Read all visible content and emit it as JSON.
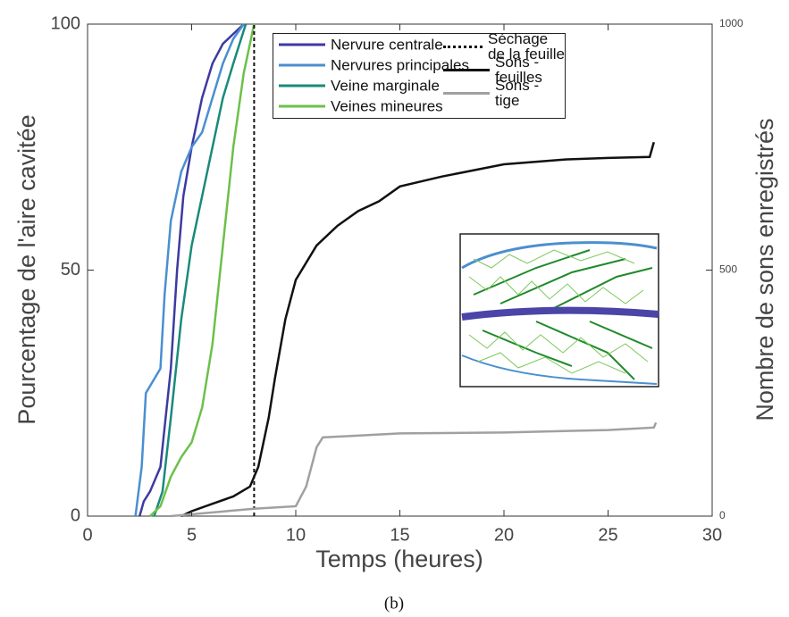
{
  "chart_data": {
    "type": "line",
    "x_label": "Temps (heures)",
    "y_label": "Pourcentage de l'aire cavitée",
    "y2_label": "Nombre de sons enregistrés",
    "caption": "(b)",
    "xlim": [
      0,
      30
    ],
    "xticks": [
      0,
      5,
      10,
      15,
      20,
      25,
      30
    ],
    "ylim": [
      0,
      100
    ],
    "yticks": [
      0,
      50,
      100
    ],
    "y2lim": [
      0,
      1000
    ],
    "y2ticks": [
      0,
      500,
      1000
    ],
    "series": [
      {
        "name": "Nervure centrale",
        "color": "#3d3aa0",
        "x": [
          2.5,
          2.7,
          3.0,
          3.5,
          4.0,
          4.3,
          4.6,
          5.0,
          5.5,
          6.0,
          6.5,
          7.0,
          7.5
        ],
        "values": [
          0,
          3,
          5,
          10,
          30,
          50,
          65,
          75,
          85,
          92,
          96,
          98,
          100
        ]
      },
      {
        "name": "Nervures principales",
        "color": "#4a8fd0",
        "x": [
          2.3,
          2.6,
          2.8,
          3.5,
          3.7,
          4.0,
          4.5,
          5.0,
          5.5,
          6.0,
          6.5,
          7.0,
          7.5
        ],
        "values": [
          0,
          10,
          25,
          30,
          45,
          60,
          70,
          75,
          78,
          85,
          92,
          97,
          100
        ]
      },
      {
        "name": "Veine marginale",
        "color": "#1a8a7a",
        "x": [
          3.2,
          3.6,
          4.0,
          4.5,
          5.0,
          5.5,
          6.0,
          6.5,
          7.0,
          7.6
        ],
        "values": [
          0,
          5,
          20,
          40,
          55,
          65,
          75,
          85,
          92,
          100
        ]
      },
      {
        "name": "Veines mineures",
        "color": "#6cc04a",
        "x": [
          3.0,
          3.5,
          4.0,
          4.5,
          5.0,
          5.5,
          6.0,
          6.5,
          7.0,
          7.5,
          8.0
        ],
        "values": [
          0,
          2,
          8,
          12,
          15,
          22,
          35,
          55,
          75,
          90,
          100
        ]
      },
      {
        "name": "Séchage de la feuille",
        "color": "#111111",
        "dashed": true,
        "x": [
          8,
          8
        ],
        "values": [
          0,
          100
        ]
      },
      {
        "name": "Sons - feuilles",
        "color": "#111111",
        "axis": "y2",
        "x": [
          4.5,
          5,
          6,
          7,
          7.8,
          8.2,
          8.7,
          9,
          9.5,
          10,
          11,
          12,
          13,
          14,
          15,
          17,
          20,
          23,
          25,
          27,
          27.2
        ],
        "values": [
          0,
          10,
          25,
          40,
          60,
          100,
          200,
          280,
          400,
          480,
          550,
          590,
          620,
          640,
          670,
          690,
          715,
          725,
          728,
          730,
          760
        ]
      },
      {
        "name": "Sons - tige",
        "color": "#a0a0a0",
        "axis": "y2",
        "x": [
          4,
          8,
          10,
          10.5,
          11,
          11.3,
          15,
          20,
          25,
          27.2,
          27.3
        ],
        "values": [
          0,
          15,
          20,
          60,
          140,
          160,
          168,
          170,
          175,
          180,
          190
        ]
      }
    ]
  }
}
